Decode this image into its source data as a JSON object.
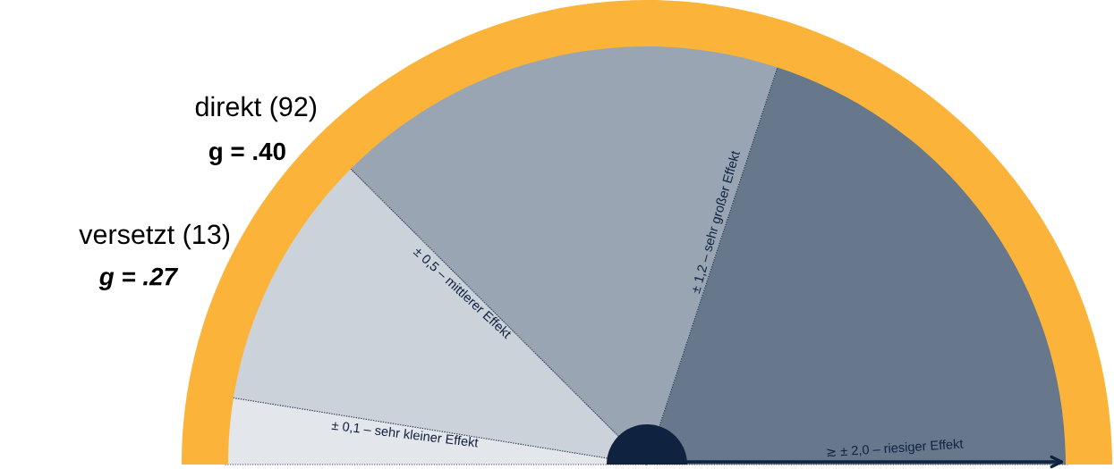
{
  "chart_data": {
    "type": "pie",
    "categories": [
      "± 0,1 – sehr kleiner Effekt",
      "± 0,5 – mittlerer Effekt",
      "± 1,2 – sehr großer Effekt",
      "≳ ± 2,0 – riesiger Effekt"
    ],
    "values": [
      5.1,
      19.9,
      35.1,
      39.9
    ],
    "colors": [
      "#e3e6ea",
      "#cbd2da",
      "#99a5b3",
      "#67788c"
    ],
    "annotations": [
      "direkt (92)",
      "g = .40",
      "versetzt (13)",
      "g = .27"
    ]
  }
}
